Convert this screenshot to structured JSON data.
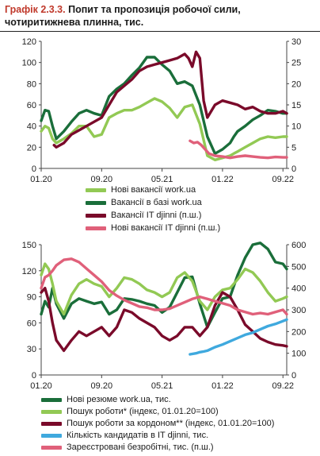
{
  "title": {
    "lead": "Графік 2.3.3.",
    "text": "Попит та пропозиція робочої сили, чотиритижнева плинна, тис."
  },
  "chart_data": [
    {
      "type": "line",
      "x_ticks": [
        "01.20",
        "09.20",
        "05.21",
        "01.22",
        "09.22"
      ],
      "y_left": {
        "lim": [
          0,
          120
        ],
        "ticks": [
          "0",
          "20",
          "40",
          "60",
          "80",
          "100",
          "120"
        ]
      },
      "y_right": {
        "lim": [
          0,
          30
        ],
        "ticks": [
          "0",
          "5",
          "10",
          "15",
          "20",
          "25",
          "30"
        ]
      },
      "grid": false,
      "legend_position": "bottom",
      "series": [
        {
          "name": "Нові вакансії work.ua",
          "axis": "left",
          "color": "#92c954",
          "x": [
            0,
            0.5,
            1,
            1.5,
            2,
            3,
            4,
            5,
            6,
            7,
            8,
            9,
            10,
            11,
            12,
            13,
            14,
            15,
            16,
            17,
            18,
            19,
            20,
            21,
            22,
            23,
            24,
            25,
            25.5,
            26,
            27,
            28,
            29,
            30,
            31,
            32,
            32.5
          ],
          "y": [
            35,
            40,
            38,
            28,
            24,
            28,
            33,
            40,
            40,
            30,
            32,
            48,
            52,
            55,
            55,
            58,
            62,
            66,
            63,
            57,
            48,
            58,
            60,
            42,
            12,
            8,
            10,
            12,
            14,
            16,
            20,
            24,
            28,
            30,
            29,
            30,
            30
          ]
        },
        {
          "name": "Вакансії в базі work.ua",
          "axis": "left",
          "color": "#1a6e3a",
          "x": [
            0,
            0.5,
            1,
            1.5,
            2,
            3,
            4,
            5,
            6,
            7,
            8,
            9,
            10,
            11,
            12,
            13,
            14,
            15,
            16,
            17,
            18,
            19,
            20,
            21,
            22,
            23,
            24,
            25,
            25.5,
            26,
            27,
            28,
            29,
            30,
            31,
            32,
            32.5
          ],
          "y": [
            45,
            55,
            54,
            40,
            28,
            35,
            44,
            52,
            55,
            52,
            50,
            68,
            75,
            80,
            88,
            95,
            105,
            105,
            98,
            92,
            80,
            82,
            78,
            60,
            30,
            14,
            18,
            24,
            30,
            35,
            40,
            46,
            50,
            55,
            54,
            52,
            52
          ]
        },
        {
          "name": "Вакансії IT djinni (п.ш.)",
          "axis": "right",
          "color": "#7a0a2a",
          "x": [
            1.7,
            2,
            3,
            4,
            5,
            6,
            7,
            8,
            9,
            10,
            11,
            12,
            13,
            14,
            15,
            16,
            17,
            18,
            19,
            19.5,
            20,
            20.5,
            21,
            21.5,
            22,
            23,
            24,
            25,
            26,
            27,
            28,
            29,
            30,
            31,
            32,
            32.5
          ],
          "y": [
            5.5,
            5,
            6,
            8,
            9,
            10,
            11,
            12,
            15,
            18,
            19.5,
            21,
            23,
            24,
            24.5,
            25,
            25.5,
            26,
            27,
            26,
            24,
            27.5,
            26,
            16,
            12,
            15,
            16,
            15.5,
            15,
            14,
            14.5,
            13.5,
            13,
            13,
            13.5,
            13
          ]
        },
        {
          "name": "Нові вакансії IT djinni (п.ш.)",
          "axis": "right",
          "color": "#e0607a",
          "x": [
            19.7,
            20.2,
            20.7,
            21.2,
            21.7,
            22.2,
            23,
            24,
            25,
            26,
            27,
            28,
            29,
            30,
            31,
            32,
            32.5
          ],
          "y": [
            6.5,
            6,
            6.2,
            5.5,
            4.5,
            3.5,
            3,
            2.8,
            2.5,
            2.8,
            3,
            2.8,
            2.6,
            2.5,
            2.7,
            2.6,
            2.6
          ]
        }
      ]
    },
    {
      "type": "line",
      "x_ticks": [
        "01.20",
        "09.20",
        "05.21",
        "01.22",
        "09.22"
      ],
      "y_left": {
        "lim": [
          0,
          150
        ],
        "ticks": [
          "0",
          "30",
          "60",
          "90",
          "120",
          "150"
        ]
      },
      "y_right": {
        "lim": [
          0,
          600
        ],
        "ticks": [
          "0",
          "100",
          "200",
          "300",
          "400",
          "500",
          "600"
        ]
      },
      "grid": false,
      "legend_position": "bottom",
      "series": [
        {
          "name": "Нові резюме work.ua, тис.",
          "axis": "left",
          "color": "#1a6e3a",
          "x": [
            0,
            0.5,
            1,
            1.5,
            2,
            3,
            4,
            5,
            6,
            7,
            8,
            9,
            10,
            11,
            12,
            13,
            14,
            15,
            16,
            17,
            18,
            19,
            20,
            21,
            22,
            23,
            24,
            25,
            26,
            27,
            28,
            29,
            30,
            31,
            32,
            32.5
          ],
          "y": [
            70,
            85,
            78,
            100,
            82,
            65,
            82,
            88,
            85,
            82,
            84,
            70,
            75,
            88,
            87,
            85,
            82,
            80,
            72,
            78,
            95,
            112,
            113,
            82,
            55,
            72,
            88,
            90,
            115,
            135,
            150,
            152,
            145,
            130,
            128,
            122
          ]
        },
        {
          "name": "Пошук роботи* (індекс, 01.01.20=100)",
          "axis": "left",
          "color": "#92c954",
          "x": [
            0,
            0.5,
            1,
            1.5,
            2,
            3,
            4,
            5,
            6,
            7,
            8,
            9,
            10,
            11,
            12,
            13,
            14,
            15,
            16,
            17,
            18,
            19,
            20,
            21,
            22,
            23,
            24,
            25,
            26,
            27,
            28,
            29,
            30,
            31,
            32,
            32.5
          ],
          "y": [
            115,
            128,
            122,
            105,
            85,
            70,
            92,
            105,
            110,
            105,
            102,
            90,
            100,
            112,
            110,
            105,
            98,
            95,
            90,
            95,
            112,
            118,
            108,
            85,
            75,
            90,
            98,
            100,
            110,
            122,
            118,
            108,
            95,
            85,
            88,
            90
          ]
        },
        {
          "name": "Пошук роботи за кордоном** (індекс, 01.01.20=100)",
          "axis": "left",
          "color": "#7a0a2a",
          "x": [
            0,
            0.5,
            1,
            1.5,
            2,
            3,
            4,
            5,
            6,
            7,
            8,
            9,
            10,
            11,
            12,
            13,
            14,
            15,
            16,
            17,
            18,
            19,
            20,
            21,
            22,
            23,
            24,
            25,
            26,
            27,
            28,
            29,
            30,
            31,
            32,
            32.5
          ],
          "y": [
            95,
            100,
            85,
            60,
            40,
            28,
            40,
            50,
            45,
            50,
            55,
            45,
            55,
            75,
            72,
            65,
            60,
            55,
            45,
            40,
            45,
            55,
            55,
            45,
            55,
            80,
            95,
            90,
            75,
            58,
            50,
            42,
            38,
            35,
            34,
            33
          ]
        },
        {
          "name": "Кількість кандидатів в IT djinni, тис.",
          "axis": "right",
          "color": "#3fa9de",
          "x": [
            19.7,
            20.5,
            21,
            21.5,
            22,
            22.5,
            23,
            24,
            25,
            26,
            27,
            28,
            29,
            30,
            31,
            32,
            32.5
          ],
          "y": [
            95,
            100,
            105,
            108,
            112,
            120,
            128,
            140,
            155,
            170,
            185,
            195,
            210,
            225,
            235,
            248,
            255
          ]
        },
        {
          "name": "Зареєстровані безробітні, тис. (п.ш.)",
          "axis": "right",
          "color": "#e0607a",
          "x": [
            0,
            0.5,
            1,
            1.5,
            2,
            3,
            4,
            5,
            6,
            7,
            8,
            9,
            10,
            11,
            12,
            13,
            14,
            15,
            16,
            17,
            18,
            19,
            20,
            21,
            22,
            23,
            24,
            25,
            26,
            27,
            28,
            29,
            30,
            31,
            32,
            32.5
          ],
          "y": [
            400,
            450,
            460,
            480,
            505,
            530,
            535,
            520,
            490,
            460,
            430,
            390,
            365,
            345,
            330,
            315,
            310,
            300,
            300,
            305,
            320,
            335,
            350,
            360,
            350,
            340,
            330,
            320,
            300,
            290,
            280,
            285,
            280,
            290,
            300,
            280
          ]
        }
      ]
    }
  ]
}
